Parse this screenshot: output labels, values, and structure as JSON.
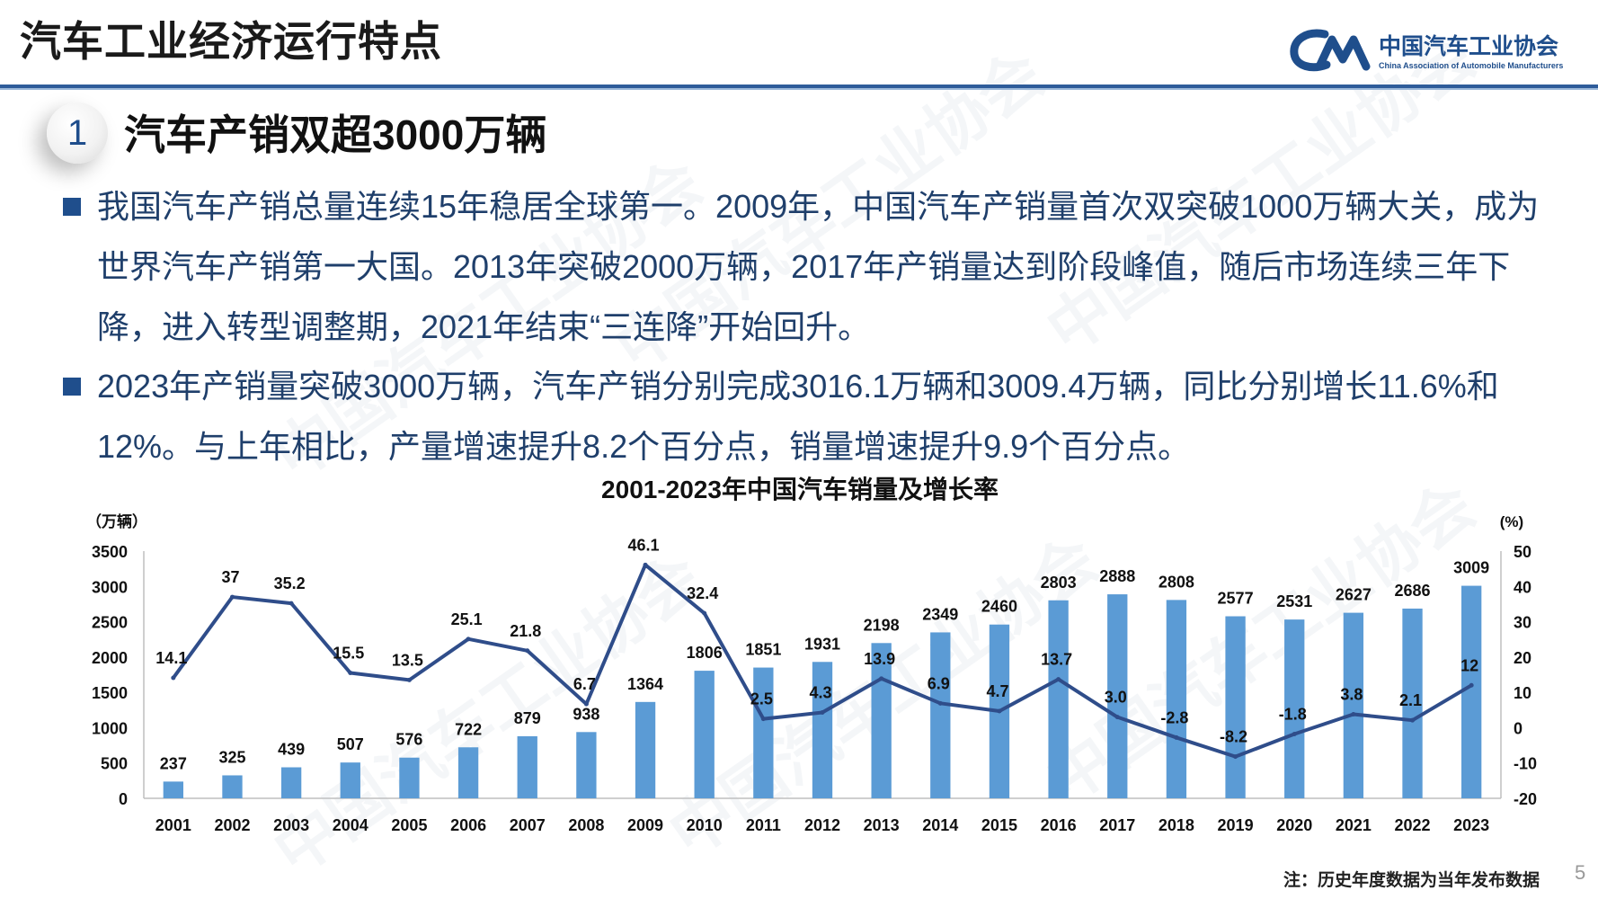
{
  "slide": {
    "title": "汽车工业经济运行特点",
    "section_number": "1",
    "section_title": "汽车产销双超3000万辆",
    "paragraphs": [
      "我国汽车产销总量连续15年稳居全球第一。2009年，中国汽车产销量首次双突破1000万辆大关，成为世界汽车产销第一大国。2013年突破2000万辆，2017年产销量达到阶段峰值，随后市场连续三年下降，进入转型调整期，2021年结束“三连降”开始回升。",
      "2023年产销量突破3000万辆，汽车产销分别完成3016.1万辆和3009.4万辆，同比分别增长11.6%和12%。与上年相比，产量增速提升8.2个百分点，销量增速提升9.9个百分点。"
    ],
    "footnote": "注：历史年度数据为当年发布数据",
    "page_number": "5"
  },
  "logo": {
    "name_cn": "中国汽车工业协会",
    "name_en": "China Association of Automobile Manufacturers",
    "mark": "CAM"
  },
  "watermark": {
    "text": "中国汽车工业协会"
  },
  "colors": {
    "bar": "#5b9bd5",
    "line": "#2f4d8a",
    "accent": "#1f4e8c",
    "header_rule": "#2e5c9a"
  },
  "chart_data": {
    "type": "bar+line",
    "title": "2001-2023年中国汽车销量及增长率",
    "y_left_unit": "（万辆）",
    "y_right_unit": "(%)",
    "ylim_left": [
      0,
      3500
    ],
    "ylim_right": [
      -20,
      50
    ],
    "y_left_ticks": [
      0,
      500,
      1000,
      1500,
      2000,
      2500,
      3000,
      3500
    ],
    "y_right_ticks": [
      -20,
      -10,
      0,
      10,
      20,
      30,
      40,
      50
    ],
    "grid": false,
    "categories": [
      "2001",
      "2002",
      "2003",
      "2004",
      "2005",
      "2006",
      "2007",
      "2008",
      "2009",
      "2010",
      "2011",
      "2012",
      "2013",
      "2014",
      "2015",
      "2016",
      "2017",
      "2018",
      "2019",
      "2020",
      "2021",
      "2022",
      "2023"
    ],
    "series": [
      {
        "type": "bar",
        "axis": "left",
        "values": [
          237,
          325,
          439,
          507,
          576,
          722,
          879,
          938,
          1364,
          1806,
          1851,
          1931,
          2198,
          2349,
          2460,
          2803,
          2888,
          2808,
          2577,
          2531,
          2627,
          2686,
          3009
        ]
      },
      {
        "type": "line",
        "axis": "right",
        "values": [
          14.1,
          37,
          35.2,
          15.5,
          13.5,
          25.1,
          21.8,
          6.7,
          46.1,
          32.4,
          2.5,
          4.3,
          13.9,
          6.9,
          4.7,
          13.7,
          3.0,
          -2.8,
          -8.2,
          -1.8,
          3.8,
          2.1,
          12
        ],
        "labels": [
          "14.1",
          "37",
          "35.2",
          "15.5",
          "13.5",
          "25.1",
          "21.8",
          "6.7",
          "46.1",
          "32.4",
          "2.5",
          "4.3",
          "13.9",
          "6.9",
          "4.7",
          "13.7",
          "3.0",
          "-2.8",
          "-8.2",
          "-1.8",
          "3.8",
          "2.1",
          "12"
        ]
      }
    ]
  }
}
